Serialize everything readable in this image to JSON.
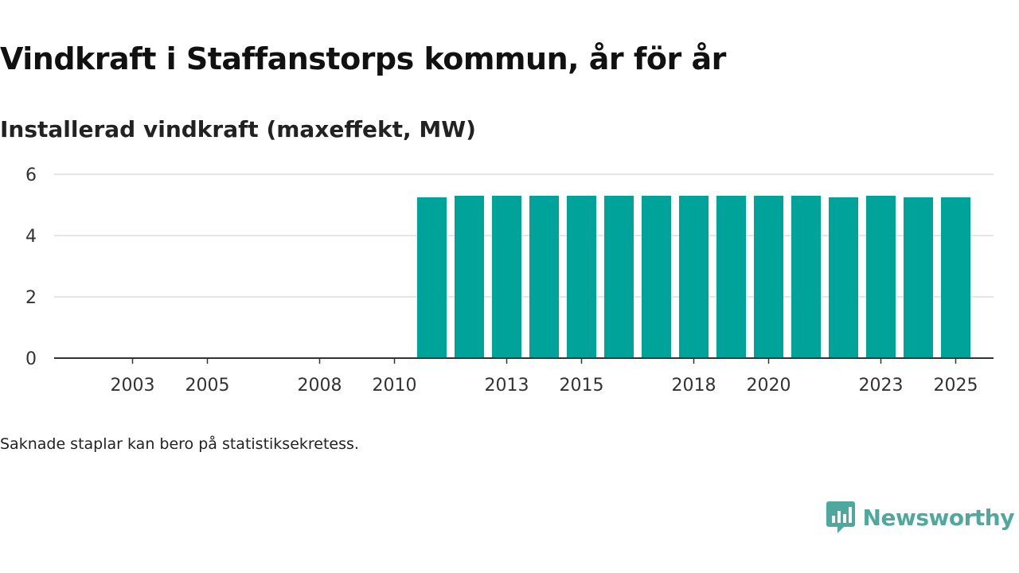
{
  "header": {
    "title": "Vindkraft i Staffanstorps kommun, år för år",
    "subtitle": "Installerad vindkraft (maxeffekt, MW)"
  },
  "footer": {
    "note": "Saknade staplar kan bero på statistiksekretess.",
    "brand": "Newsworthy",
    "brand_icon": "newsworthy-logo-icon"
  },
  "colors": {
    "bar": "#00a39a",
    "grid": "#dddddd",
    "axis": "#333333",
    "brand": "#4ea89d"
  },
  "chart_data": {
    "type": "bar",
    "title": "Vindkraft i Staffanstorps kommun, år för år",
    "ylabel": "Installerad vindkraft (maxeffekt, MW)",
    "xlabel": "",
    "categories": [
      "2002",
      "2003",
      "2004",
      "2005",
      "2006",
      "2007",
      "2008",
      "2009",
      "2010",
      "2011",
      "2012",
      "2013",
      "2014",
      "2015",
      "2016",
      "2017",
      "2018",
      "2019",
      "2020",
      "2021",
      "2022",
      "2023",
      "2024",
      "2025"
    ],
    "values": [
      null,
      null,
      null,
      null,
      null,
      null,
      null,
      null,
      null,
      5.25,
      5.3,
      5.3,
      5.3,
      5.3,
      5.3,
      5.3,
      5.3,
      5.3,
      5.3,
      5.3,
      5.25,
      5.3,
      5.25,
      5.25
    ],
    "x_tick_labels": [
      "2003",
      "2005",
      "2008",
      "2010",
      "2013",
      "2015",
      "2018",
      "2020",
      "2023",
      "2025"
    ],
    "y_ticks": [
      0,
      2,
      4,
      6
    ],
    "ylim": [
      0,
      6
    ],
    "grid": true,
    "legend": "none"
  }
}
